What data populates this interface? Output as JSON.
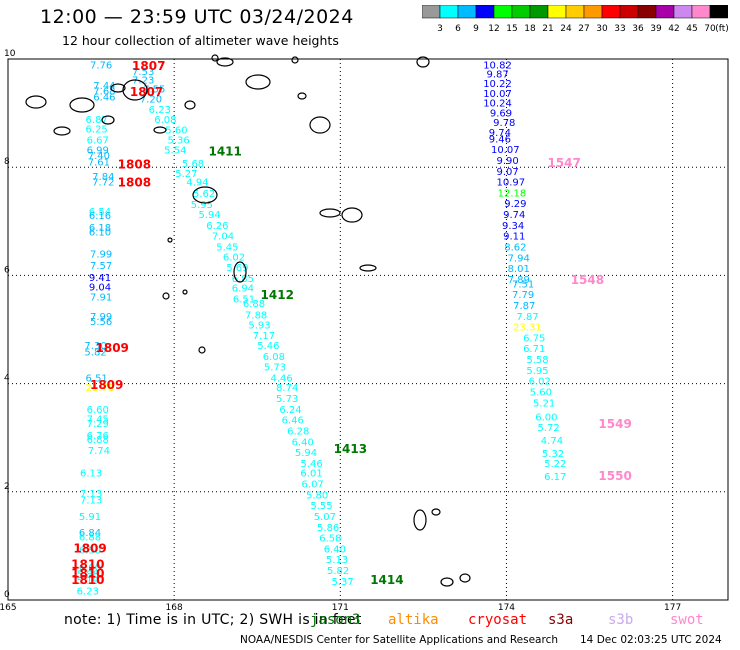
{
  "title": "12:00 — 23:59 UTC 03/24/2024",
  "subtitle": "12 hour collection of altimeter wave heights",
  "note": "note: 1) Time is in UTC; 2) SWH is in feet",
  "credit": "NOAA/NESDIS Center for Satellite Applications and Research",
  "generated": "14 Dec 02:03:25 UTC 2024",
  "missions": [
    {
      "name": "jason3",
      "color": "#007700"
    },
    {
      "name": "altika",
      "color": "#ff8c00"
    },
    {
      "name": "cryosat",
      "color": "#ff0000"
    },
    {
      "name": "s3a",
      "color": "#880000"
    },
    {
      "name": "s3b",
      "color": "#c8a8f0"
    },
    {
      "name": "swot",
      "color": "#ff88cc"
    }
  ],
  "scale": {
    "unit": "(ft)",
    "labels": [
      "3",
      "6",
      "9",
      "12",
      "15",
      "18",
      "21",
      "24",
      "27",
      "30",
      "33",
      "36",
      "39",
      "42",
      "45",
      "70"
    ],
    "colors": [
      "#999999",
      "#00ffff",
      "#00bbff",
      "#0000ff",
      "#00ff00",
      "#00cc00",
      "#009900",
      "#ffff00",
      "#ffcc00",
      "#ff9900",
      "#ff0000",
      "#cc0000",
      "#880000",
      "#aa00aa",
      "#cc88ee",
      "#ff88cc",
      "#000000"
    ]
  },
  "chart_data": {
    "type": "scatter",
    "xlim": [
      165,
      178
    ],
    "ylim": [
      0,
      10
    ],
    "x_ticks": [
      "165",
      "168",
      "171",
      "174",
      "177"
    ],
    "y_ticks": [
      "0",
      "2",
      "4",
      "6",
      "8",
      "10"
    ],
    "grid": true,
    "points": [
      {
        "x": 166.48,
        "y": 9.82,
        "v": "7.76",
        "c": "#00bbff"
      },
      {
        "x": 167.24,
        "y": 9.7,
        "v": "7.53",
        "c": "#00bbff"
      },
      {
        "x": 167.24,
        "y": 9.55,
        "v": "7.23",
        "c": "#00bbff"
      },
      {
        "x": 166.54,
        "y": 9.45,
        "v": "7.44",
        "c": "#00bbff"
      },
      {
        "x": 167.44,
        "y": 9.38,
        "v": "7.55",
        "c": "#00bbff"
      },
      {
        "x": 166.54,
        "y": 9.34,
        "v": "7.68",
        "c": "#00bbff"
      },
      {
        "x": 166.54,
        "y": 9.23,
        "v": "6.46",
        "c": "#00bbff"
      },
      {
        "x": 167.38,
        "y": 9.2,
        "v": "7.20",
        "c": "#00bbff"
      },
      {
        "x": 167.54,
        "y": 9.0,
        "v": "6.23",
        "c": "#00ffff"
      },
      {
        "x": 166.4,
        "y": 8.82,
        "v": "6.87",
        "c": "#00ffff"
      },
      {
        "x": 167.64,
        "y": 8.82,
        "v": "6.08",
        "c": "#00ffff"
      },
      {
        "x": 166.4,
        "y": 8.64,
        "v": "6.25",
        "c": "#00ffff"
      },
      {
        "x": 167.84,
        "y": 8.62,
        "v": "5.60",
        "c": "#00ffff"
      },
      {
        "x": 166.42,
        "y": 8.44,
        "v": "6.67",
        "c": "#00ffff"
      },
      {
        "x": 167.88,
        "y": 8.44,
        "v": "5.36",
        "c": "#00ffff"
      },
      {
        "x": 166.42,
        "y": 8.25,
        "v": "6.99",
        "c": "#00bbff"
      },
      {
        "x": 167.82,
        "y": 8.25,
        "v": "5.54",
        "c": "#00ffff"
      },
      {
        "x": 166.44,
        "y": 8.15,
        "v": "7.40",
        "c": "#00bbff"
      },
      {
        "x": 166.44,
        "y": 8.03,
        "v": "7.61",
        "c": "#00bbff"
      },
      {
        "x": 168.14,
        "y": 8.0,
        "v": "5.68",
        "c": "#00ffff"
      },
      {
        "x": 168.02,
        "y": 7.82,
        "v": "5.27",
        "c": "#00ffff"
      },
      {
        "x": 166.52,
        "y": 7.76,
        "v": "7.84",
        "c": "#00bbff"
      },
      {
        "x": 166.52,
        "y": 7.66,
        "v": "7.72",
        "c": "#00bbff"
      },
      {
        "x": 168.22,
        "y": 7.66,
        "v": "4.94",
        "c": "#00ffff"
      },
      {
        "x": 168.34,
        "y": 7.45,
        "v": "5.62",
        "c": "#00ffff"
      },
      {
        "x": 168.3,
        "y": 7.25,
        "v": "5.95",
        "c": "#00ffff"
      },
      {
        "x": 166.46,
        "y": 7.12,
        "v": "6.54",
        "c": "#00ffff"
      },
      {
        "x": 166.46,
        "y": 7.04,
        "v": "6.16",
        "c": "#00bbff"
      },
      {
        "x": 168.44,
        "y": 7.06,
        "v": "5.94",
        "c": "#00ffff"
      },
      {
        "x": 168.58,
        "y": 6.86,
        "v": "6.26",
        "c": "#00ffff"
      },
      {
        "x": 166.46,
        "y": 6.82,
        "v": "6.18",
        "c": "#00bbff"
      },
      {
        "x": 166.46,
        "y": 6.74,
        "v": "6.10",
        "c": "#00bbff"
      },
      {
        "x": 168.68,
        "y": 6.66,
        "v": "7.04",
        "c": "#00ffff"
      },
      {
        "x": 168.76,
        "y": 6.46,
        "v": "5.45",
        "c": "#00ffff"
      },
      {
        "x": 166.48,
        "y": 6.33,
        "v": "7.99",
        "c": "#00bbff"
      },
      {
        "x": 166.48,
        "y": 6.12,
        "v": "7.57",
        "c": "#00bbff"
      },
      {
        "x": 168.88,
        "y": 6.28,
        "v": "6.02",
        "c": "#00ffff"
      },
      {
        "x": 168.94,
        "y": 6.08,
        "v": "5.69",
        "c": "#00ffff"
      },
      {
        "x": 166.46,
        "y": 5.9,
        "v": "9.41",
        "c": "#0000ff"
      },
      {
        "x": 169.04,
        "y": 5.88,
        "v": "6.85",
        "c": "#00ffff"
      },
      {
        "x": 166.46,
        "y": 5.72,
        "v": "9.04",
        "c": "#0000ff"
      },
      {
        "x": 169.04,
        "y": 5.7,
        "v": "6.94",
        "c": "#00ffff"
      },
      {
        "x": 166.48,
        "y": 5.54,
        "v": "7.91",
        "c": "#00bbff"
      },
      {
        "x": 169.06,
        "y": 5.5,
        "v": "6.51",
        "c": "#00ffff"
      },
      {
        "x": 169.24,
        "y": 5.42,
        "v": "6.88",
        "c": "#00ffff"
      },
      {
        "x": 169.28,
        "y": 5.2,
        "v": "7.88",
        "c": "#00ffff"
      },
      {
        "x": 166.48,
        "y": 5.18,
        "v": "7.99",
        "c": "#00bbff"
      },
      {
        "x": 166.48,
        "y": 5.08,
        "v": "5.56",
        "c": "#00bbff"
      },
      {
        "x": 169.34,
        "y": 5.02,
        "v": "5.93",
        "c": "#00ffff"
      },
      {
        "x": 169.42,
        "y": 4.82,
        "v": "7.17",
        "c": "#00ffff"
      },
      {
        "x": 166.38,
        "y": 4.64,
        "v": "7.30",
        "c": "#00bbff"
      },
      {
        "x": 169.5,
        "y": 4.64,
        "v": "5.46",
        "c": "#00ffff"
      },
      {
        "x": 166.38,
        "y": 4.52,
        "v": "5.82",
        "c": "#00bbff"
      },
      {
        "x": 169.6,
        "y": 4.44,
        "v": "6.08",
        "c": "#00ffff"
      },
      {
        "x": 169.62,
        "y": 4.24,
        "v": "5.73",
        "c": "#00ffff"
      },
      {
        "x": 166.4,
        "y": 4.04,
        "v": "6.51",
        "c": "#00bbff"
      },
      {
        "x": 169.74,
        "y": 4.04,
        "v": "4.46",
        "c": "#00ffff"
      },
      {
        "x": 166.4,
        "y": 3.86,
        "v": "21.78",
        "c": "#ffff00"
      },
      {
        "x": 169.84,
        "y": 3.86,
        "v": "8.74",
        "c": "#00ffff"
      },
      {
        "x": 169.84,
        "y": 3.66,
        "v": "5.73",
        "c": "#00ffff"
      },
      {
        "x": 166.42,
        "y": 3.46,
        "v": "6.60",
        "c": "#00ffff"
      },
      {
        "x": 169.9,
        "y": 3.46,
        "v": "6.24",
        "c": "#00ffff"
      },
      {
        "x": 166.42,
        "y": 3.28,
        "v": "7.45",
        "c": "#00ffff"
      },
      {
        "x": 166.42,
        "y": 3.2,
        "v": "7.29",
        "c": "#00ffff"
      },
      {
        "x": 169.94,
        "y": 3.26,
        "v": "6.46",
        "c": "#00ffff"
      },
      {
        "x": 166.42,
        "y": 2.98,
        "v": "6.76",
        "c": "#00ffff"
      },
      {
        "x": 166.42,
        "y": 2.9,
        "v": "6.88",
        "c": "#00ffff"
      },
      {
        "x": 170.04,
        "y": 3.06,
        "v": "6.28",
        "c": "#00ffff"
      },
      {
        "x": 166.44,
        "y": 2.7,
        "v": "7.74",
        "c": "#00ffff"
      },
      {
        "x": 170.12,
        "y": 2.86,
        "v": "6.40",
        "c": "#00ffff"
      },
      {
        "x": 170.18,
        "y": 2.66,
        "v": "5.94",
        "c": "#00ffff"
      },
      {
        "x": 170.28,
        "y": 2.46,
        "v": "5.46",
        "c": "#00ffff"
      },
      {
        "x": 166.3,
        "y": 2.28,
        "v": "6.13",
        "c": "#00ffff"
      },
      {
        "x": 170.28,
        "y": 2.28,
        "v": "6.01",
        "c": "#00ffff"
      },
      {
        "x": 166.3,
        "y": 1.9,
        "v": "7.13",
        "c": "#00ffff"
      },
      {
        "x": 166.3,
        "y": 1.78,
        "v": "7.13",
        "c": "#00ffff"
      },
      {
        "x": 170.3,
        "y": 2.08,
        "v": "6.07",
        "c": "#00ffff"
      },
      {
        "x": 170.38,
        "y": 1.88,
        "v": "5.80",
        "c": "#00ffff"
      },
      {
        "x": 170.46,
        "y": 1.68,
        "v": "5.55",
        "c": "#00ffff"
      },
      {
        "x": 166.28,
        "y": 1.48,
        "v": "5.91",
        "c": "#00ffff"
      },
      {
        "x": 170.52,
        "y": 1.48,
        "v": "5.07",
        "c": "#00ffff"
      },
      {
        "x": 166.28,
        "y": 1.18,
        "v": "6.84",
        "c": "#00bbff"
      },
      {
        "x": 166.28,
        "y": 1.1,
        "v": "6.88",
        "c": "#00ffff"
      },
      {
        "x": 170.58,
        "y": 1.28,
        "v": "5.86",
        "c": "#00ffff"
      },
      {
        "x": 166.28,
        "y": 0.86,
        "v": "6.50",
        "c": "#00ffff"
      },
      {
        "x": 170.62,
        "y": 1.08,
        "v": "6.58",
        "c": "#00ffff"
      },
      {
        "x": 170.7,
        "y": 0.88,
        "v": "6.40",
        "c": "#00ffff"
      },
      {
        "x": 166.28,
        "y": 0.54,
        "v": "6.00",
        "c": "#00ffff"
      },
      {
        "x": 170.74,
        "y": 0.68,
        "v": "5.13",
        "c": "#00ffff"
      },
      {
        "x": 166.24,
        "y": 0.42,
        "v": "5.88",
        "c": "#00ffff"
      },
      {
        "x": 170.76,
        "y": 0.48,
        "v": "5.82",
        "c": "#00ffff"
      },
      {
        "x": 166.24,
        "y": 0.3,
        "v": "5.19",
        "c": "#00ffff"
      },
      {
        "x": 170.84,
        "y": 0.28,
        "v": "5.37",
        "c": "#00ffff"
      },
      {
        "x": 166.24,
        "y": 0.1,
        "v": "6.23",
        "c": "#00ffff"
      },
      {
        "x": 173.58,
        "y": 9.82,
        "v": "10.82",
        "c": "#0000ff"
      },
      {
        "x": 173.64,
        "y": 9.66,
        "v": "9.87",
        "c": "#0000ff"
      },
      {
        "x": 173.58,
        "y": 9.48,
        "v": "10.22",
        "c": "#0000ff"
      },
      {
        "x": 173.58,
        "y": 9.3,
        "v": "10.07",
        "c": "#0000ff"
      },
      {
        "x": 173.58,
        "y": 9.12,
        "v": "10.24",
        "c": "#0000ff"
      },
      {
        "x": 173.7,
        "y": 8.94,
        "v": "9.69",
        "c": "#0000ff"
      },
      {
        "x": 173.76,
        "y": 8.76,
        "v": "9.78",
        "c": "#0000ff"
      },
      {
        "x": 173.68,
        "y": 8.58,
        "v": "9.74",
        "c": "#0000ff"
      },
      {
        "x": 173.68,
        "y": 8.46,
        "v": "9.46",
        "c": "#0000ff"
      },
      {
        "x": 173.72,
        "y": 8.26,
        "v": "10.07",
        "c": "#0000ff"
      },
      {
        "x": 173.82,
        "y": 8.06,
        "v": "9.90",
        "c": "#0000ff"
      },
      {
        "x": 173.82,
        "y": 7.86,
        "v": "9.07",
        "c": "#0000ff"
      },
      {
        "x": 173.82,
        "y": 7.66,
        "v": "10.97",
        "c": "#0000ff"
      },
      {
        "x": 173.84,
        "y": 7.46,
        "v": "12.18",
        "c": "#00ff00"
      },
      {
        "x": 173.96,
        "y": 7.26,
        "v": "9.29",
        "c": "#0000ff"
      },
      {
        "x": 173.94,
        "y": 7.06,
        "v": "9.74",
        "c": "#0000ff"
      },
      {
        "x": 173.92,
        "y": 6.86,
        "v": "9.34",
        "c": "#0000ff"
      },
      {
        "x": 173.94,
        "y": 6.66,
        "v": "9.11",
        "c": "#0000ff"
      },
      {
        "x": 173.96,
        "y": 6.46,
        "v": "8.62",
        "c": "#00bbff"
      },
      {
        "x": 174.02,
        "y": 6.26,
        "v": "7.94",
        "c": "#00bbff"
      },
      {
        "x": 174.02,
        "y": 6.06,
        "v": "8.01",
        "c": "#00bbff"
      },
      {
        "x": 174.02,
        "y": 5.86,
        "v": "7.89",
        "c": "#00bbff"
      },
      {
        "x": 174.1,
        "y": 5.78,
        "v": "7.51",
        "c": "#00bbff"
      },
      {
        "x": 174.1,
        "y": 5.58,
        "v": "7.79",
        "c": "#00bbff"
      },
      {
        "x": 174.12,
        "y": 5.38,
        "v": "7.87",
        "c": "#00bbff"
      },
      {
        "x": 174.18,
        "y": 5.18,
        "v": "7.87",
        "c": "#00ffff"
      },
      {
        "x": 174.12,
        "y": 4.98,
        "v": "23.31",
        "c": "#ffff00"
      },
      {
        "x": 174.3,
        "y": 4.78,
        "v": "6.75",
        "c": "#00ffff"
      },
      {
        "x": 174.3,
        "y": 4.58,
        "v": "6.71",
        "c": "#00ffff"
      },
      {
        "x": 174.36,
        "y": 4.38,
        "v": "5.58",
        "c": "#00ffff"
      },
      {
        "x": 174.36,
        "y": 4.18,
        "v": "5.95",
        "c": "#00ffff"
      },
      {
        "x": 174.4,
        "y": 3.98,
        "v": "6.02",
        "c": "#00ffff"
      },
      {
        "x": 174.42,
        "y": 3.78,
        "v": "5.60",
        "c": "#00ffff"
      },
      {
        "x": 174.48,
        "y": 3.58,
        "v": "5.21",
        "c": "#00ffff"
      },
      {
        "x": 174.52,
        "y": 3.32,
        "v": "6.00",
        "c": "#00ffff"
      },
      {
        "x": 174.56,
        "y": 3.12,
        "v": "5.72",
        "c": "#00ffff"
      },
      {
        "x": 174.62,
        "y": 2.88,
        "v": "4.74",
        "c": "#00ffff"
      },
      {
        "x": 174.64,
        "y": 2.64,
        "v": "5.32",
        "c": "#00ffff"
      },
      {
        "x": 174.68,
        "y": 2.46,
        "v": "5.22",
        "c": "#00ffff"
      },
      {
        "x": 174.68,
        "y": 2.22,
        "v": "6.17",
        "c": "#00ffff"
      }
    ],
    "time_labels": [
      {
        "x": 167.24,
        "y": 9.8,
        "t": "1807",
        "c": "#ff0000"
      },
      {
        "x": 167.2,
        "y": 9.32,
        "t": "1807",
        "c": "#ff0000"
      },
      {
        "x": 168.62,
        "y": 8.22,
        "t": "1411",
        "c": "#007700"
      },
      {
        "x": 166.98,
        "y": 7.98,
        "t": "1808",
        "c": "#ff0000"
      },
      {
        "x": 166.98,
        "y": 7.64,
        "t": "1808",
        "c": "#ff0000"
      },
      {
        "x": 174.74,
        "y": 8.0,
        "t": "1547",
        "c": "#ff88cc"
      },
      {
        "x": 169.56,
        "y": 5.56,
        "t": "1412",
        "c": "#007700"
      },
      {
        "x": 175.16,
        "y": 5.84,
        "t": "1548",
        "c": "#ff88cc"
      },
      {
        "x": 166.58,
        "y": 4.58,
        "t": "1809",
        "c": "#ff0000"
      },
      {
        "x": 166.48,
        "y": 3.9,
        "t": "1809",
        "c": "#ff0000"
      },
      {
        "x": 170.88,
        "y": 2.72,
        "t": "1413",
        "c": "#007700"
      },
      {
        "x": 175.66,
        "y": 3.18,
        "t": "1549",
        "c": "#ff88cc"
      },
      {
        "x": 166.18,
        "y": 0.88,
        "t": "1809",
        "c": "#ff0000"
      },
      {
        "x": 166.14,
        "y": 0.58,
        "t": "1810",
        "c": "#ff0000"
      },
      {
        "x": 166.14,
        "y": 0.42,
        "t": "1810",
        "c": "#ff0000"
      },
      {
        "x": 166.14,
        "y": 0.3,
        "t": "1810",
        "c": "#ff0000"
      },
      {
        "x": 171.54,
        "y": 0.3,
        "t": "1414",
        "c": "#007700"
      },
      {
        "x": 175.66,
        "y": 2.22,
        "t": "1550",
        "c": "#ff88cc"
      }
    ]
  }
}
